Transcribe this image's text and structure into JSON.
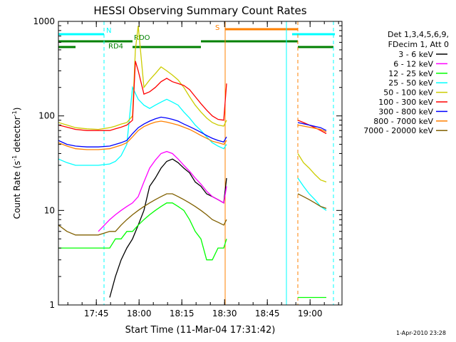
{
  "chart_data": {
    "type": "line",
    "title": "HESSI Observing Summary Count Rates",
    "xlabel": "Start Time (11-Mar-04 17:31:42)",
    "ylabel_prefix": "Count Rate (s",
    "ylabel_sup1": "-1",
    "ylabel_mid": " detector",
    "ylabel_sup2": "-1",
    "ylabel_suffix": ")",
    "x_unit": "minutes after 17:31:42",
    "xlim": [
      0,
      99.5
    ],
    "ylim": [
      1,
      1000
    ],
    "yscale": "log",
    "x_ticks": [
      {
        "label": "17:45",
        "value": 13.3
      },
      {
        "label": "18:00",
        "value": 28.3
      },
      {
        "label": "18:15",
        "value": 43.3
      },
      {
        "label": "18:30",
        "value": 58.3
      },
      {
        "label": "18:45",
        "value": 73.3
      },
      {
        "label": "19:00",
        "value": 88.3
      }
    ],
    "y_ticks": [
      {
        "label": "1",
        "value": 1
      },
      {
        "label": "10",
        "value": 10
      },
      {
        "label": "100",
        "value": 100
      },
      {
        "label": "1000",
        "value": 1000
      }
    ],
    "legend_placement": "right of plot",
    "legend_header": [
      "Det 1,3,4,5,6,9,",
      "FDecim 1, Att 0"
    ],
    "series": [
      {
        "name": "3 - 6 keV",
        "color": "#000000",
        "x": [
          0,
          3,
          6,
          10,
          14,
          18,
          20,
          22,
          24,
          26,
          28,
          30,
          32,
          34,
          36,
          38,
          40,
          42,
          44,
          46,
          48,
          50,
          52,
          54,
          56,
          58,
          59
        ],
        "y": [
          null,
          null,
          null,
          null,
          null,
          1.2,
          2,
          3,
          4,
          5,
          7,
          10,
          18,
          22,
          28,
          33,
          35,
          32,
          28,
          25,
          20,
          18,
          15,
          14,
          13,
          12,
          22
        ]
      },
      {
        "name": "6 - 12 keV",
        "color": "#ff00ff",
        "x": [
          0,
          3,
          6,
          10,
          14,
          18,
          20,
          22,
          24,
          26,
          28,
          30,
          32,
          34,
          36,
          38,
          40,
          42,
          44,
          46,
          48,
          50,
          52,
          54,
          56,
          58,
          59
        ],
        "y": [
          null,
          null,
          null,
          null,
          6,
          8,
          9,
          10,
          11,
          12,
          14,
          20,
          28,
          34,
          40,
          42,
          40,
          35,
          30,
          26,
          22,
          19,
          16,
          14,
          13,
          12,
          18
        ]
      },
      {
        "name": "12 - 25 keV",
        "color": "#00ff00",
        "x": [
          0,
          3,
          6,
          10,
          14,
          18,
          20,
          22,
          24,
          26,
          28,
          30,
          32,
          34,
          36,
          38,
          40,
          42,
          44,
          46,
          48,
          50,
          52,
          54,
          56,
          58,
          59,
          84,
          88,
          91,
          94
        ],
        "y": [
          4,
          4,
          4,
          4,
          4,
          4,
          5,
          5,
          6,
          6,
          7,
          8,
          9,
          10,
          11,
          12,
          12,
          11,
          10,
          8,
          6,
          5,
          3,
          3,
          4,
          4,
          5,
          1.2,
          1.2,
          1.2,
          1.2
        ]
      },
      {
        "name": "25 - 50 keV",
        "color": "#00ffff",
        "x": [
          0,
          3,
          6,
          10,
          14,
          18,
          20,
          22,
          24,
          26,
          28,
          30,
          32,
          34,
          36,
          38,
          40,
          42,
          44,
          46,
          48,
          50,
          52,
          54,
          56,
          58,
          59,
          84,
          86,
          88,
          90,
          92,
          94
        ],
        "y": [
          35,
          32,
          30,
          30,
          30,
          31,
          33,
          38,
          50,
          200,
          150,
          130,
          120,
          130,
          140,
          150,
          140,
          130,
          110,
          95,
          80,
          70,
          60,
          52,
          48,
          45,
          50,
          22,
          18,
          15,
          13,
          11,
          10
        ]
      },
      {
        "name": "50 - 100 keV",
        "color": "#cccc00",
        "x": [
          0,
          3,
          6,
          10,
          14,
          18,
          20,
          22,
          24,
          26,
          27,
          28,
          30,
          32,
          34,
          36,
          38,
          40,
          42,
          44,
          46,
          48,
          50,
          52,
          54,
          56,
          58,
          59,
          84,
          86,
          88,
          90,
          92,
          94
        ],
        "y": [
          85,
          80,
          75,
          73,
          72,
          75,
          78,
          82,
          85,
          100,
          500,
          900,
          200,
          240,
          280,
          330,
          300,
          270,
          240,
          200,
          160,
          130,
          110,
          95,
          85,
          80,
          78,
          90,
          40,
          32,
          28,
          24,
          21,
          20
        ]
      },
      {
        "name": "100 - 300 keV",
        "color": "#ff0000",
        "x": [
          0,
          3,
          6,
          10,
          14,
          18,
          20,
          22,
          24,
          26,
          27,
          28,
          30,
          32,
          34,
          36,
          38,
          40,
          42,
          44,
          46,
          48,
          50,
          52,
          54,
          56,
          58,
          59,
          84,
          86,
          88,
          90,
          92,
          94
        ],
        "y": [
          80,
          76,
          72,
          70,
          70,
          70,
          73,
          76,
          80,
          90,
          380,
          300,
          170,
          180,
          200,
          230,
          250,
          230,
          220,
          210,
          190,
          160,
          135,
          115,
          100,
          92,
          90,
          220,
          90,
          85,
          80,
          75,
          70,
          65
        ]
      },
      {
        "name": "300 - 800 keV",
        "color": "#0000ff",
        "x": [
          0,
          3,
          6,
          10,
          14,
          18,
          20,
          22,
          24,
          26,
          28,
          30,
          32,
          34,
          36,
          38,
          40,
          42,
          44,
          46,
          48,
          50,
          52,
          54,
          56,
          58,
          59,
          84,
          88,
          92,
          94
        ],
        "y": [
          55,
          50,
          48,
          47,
          47,
          48,
          50,
          52,
          55,
          65,
          75,
          82,
          88,
          93,
          97,
          95,
          92,
          88,
          82,
          77,
          72,
          67,
          62,
          58,
          55,
          53,
          60,
          85,
          80,
          75,
          70
        ]
      },
      {
        "name": "800 - 7000 keV",
        "color": "#ff8000",
        "x": [
          0,
          3,
          6,
          10,
          14,
          18,
          20,
          22,
          24,
          26,
          28,
          30,
          32,
          34,
          36,
          38,
          40,
          42,
          44,
          46,
          48,
          50,
          52,
          54,
          56,
          58,
          59,
          84,
          88,
          92,
          94
        ],
        "y": [
          52,
          48,
          45,
          44,
          44,
          45,
          47,
          49,
          52,
          60,
          70,
          77,
          82,
          86,
          88,
          86,
          83,
          80,
          76,
          72,
          67,
          62,
          58,
          54,
          52,
          50,
          55,
          80,
          76,
          72,
          68
        ]
      },
      {
        "name": "7000 - 20000 keV",
        "color": "#806000",
        "x": [
          0,
          3,
          6,
          10,
          14,
          18,
          20,
          22,
          24,
          26,
          28,
          30,
          32,
          34,
          36,
          38,
          40,
          42,
          44,
          46,
          48,
          50,
          52,
          54,
          56,
          58,
          59,
          84,
          86,
          88,
          90,
          92,
          94
        ],
        "y": [
          7,
          6,
          5.5,
          5.5,
          5.5,
          6,
          6,
          7,
          8,
          9,
          10,
          11,
          12,
          13,
          14,
          15,
          15,
          14,
          13,
          12,
          11,
          10,
          9,
          8,
          7.5,
          7,
          8,
          15,
          14,
          13,
          12,
          11,
          10.5
        ]
      }
    ],
    "annotations": [
      {
        "label": "N",
        "color": "#00ffff"
      },
      {
        "label": "RDO",
        "color": "#008000"
      },
      {
        "label": "RD4",
        "color": "#008000"
      },
      {
        "label": "S",
        "color": "#ff8000"
      }
    ],
    "state_bars": {
      "N": [
        [
          0,
          16
        ],
        [
          82,
          97
        ]
      ],
      "RDO_upper": [
        [
          0,
          26
        ],
        [
          50,
          84
        ]
      ],
      "RD4_lower": [
        [
          0,
          6
        ],
        [
          26,
          50
        ],
        [
          84,
          96.5
        ]
      ],
      "S": [
        [
          58.5,
          84
        ]
      ]
    },
    "vertical_markers": [
      {
        "x": 16,
        "color": "#00ffff",
        "dashed": true
      },
      {
        "x": 58.5,
        "color": "#ff8000",
        "dashed": false
      },
      {
        "x": 80,
        "color": "#00ffff",
        "dashed": false
      },
      {
        "x": 84,
        "color": "#ff8000",
        "dashed": true
      },
      {
        "x": 96.5,
        "color": "#00ffff",
        "dashed": true
      }
    ]
  },
  "footer_stamp": "1-Apr-2010 23:28"
}
